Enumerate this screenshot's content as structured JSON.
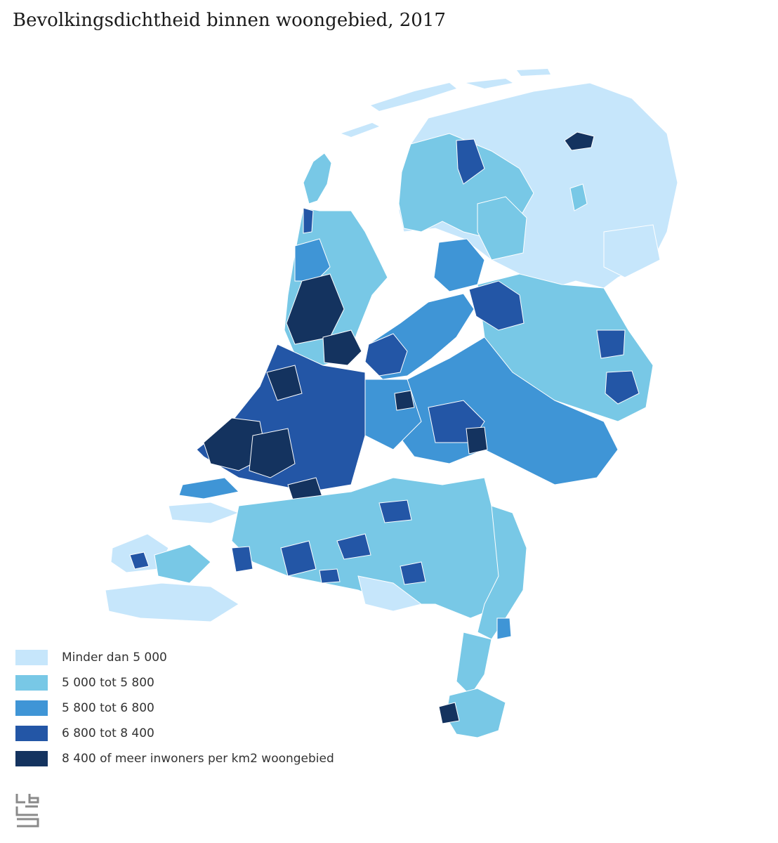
{
  "title": "Bevolkingsdichtheid binnen woongebied, 2017",
  "legend": [
    {
      "label": "Minder dan 5 000",
      "color": "#c6e6fb"
    },
    {
      "label": "5 000 tot 5 800",
      "color": "#78c8e6"
    },
    {
      "label": "5 800 tot 6 800",
      "color": "#3f95d6"
    },
    {
      "label": "6 800 tot 8 400",
      "color": "#2356a6"
    },
    {
      "label": "8 400 of meer inwoners per km2 woongebied",
      "color": "#14335f"
    }
  ],
  "logo": {
    "icon": "cbs-logo"
  }
}
